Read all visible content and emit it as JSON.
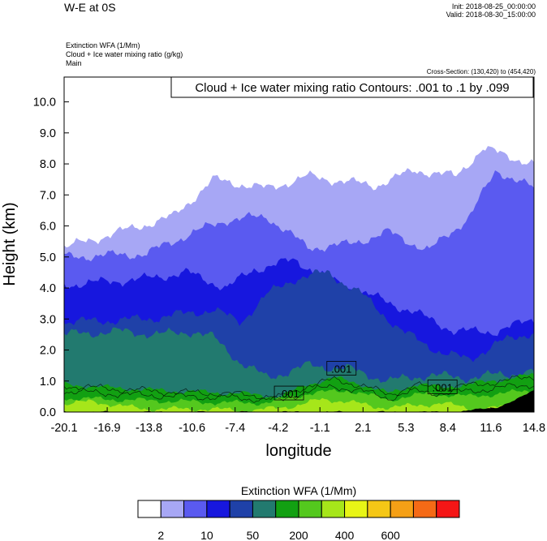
{
  "header": {
    "title": "W-E at 0S",
    "init": "Init: 2018-08-25_00:00:00",
    "valid": "Valid: 2018-08-30_15:00:00",
    "fields": [
      "Extinction WFA   (1/Mm)",
      "Cloud + Ice water mixing ratio   (g/kg)",
      "Main"
    ],
    "cross_section": "Cross-Section: (130,420) to (454,420)"
  },
  "chart_data": {
    "type": "heatmap",
    "xlabel": "longitude",
    "ylabel": "Height (km)",
    "xlim": [
      -20.1,
      14.8
    ],
    "ylim": [
      0.0,
      10.8
    ],
    "x_ticks": [
      "-20.1",
      "-16.9",
      "-13.8",
      "-10.6",
      "-7.4",
      "-4.2",
      "-1.1",
      "2.1",
      "5.3",
      "8.4",
      "11.6",
      "14.8"
    ],
    "x_tick_values": [
      -20.1,
      -16.9,
      -13.8,
      -10.6,
      -7.4,
      -4.2,
      -1.1,
      2.1,
      5.3,
      8.4,
      11.6,
      14.8
    ],
    "y_ticks": [
      "0.0",
      "1.0",
      "2.0",
      "3.0",
      "4.0",
      "5.0",
      "6.0",
      "7.0",
      "8.0",
      "9.0",
      "10.0"
    ],
    "y_tick_values": [
      0,
      1,
      2,
      3,
      4,
      5,
      6,
      7,
      8,
      9,
      10
    ],
    "contour_title": "Cloud + Ice water mixing ratio Contours: .001 to .1 by .099",
    "contour_labels": [
      {
        "text": ".001",
        "x": -3.4,
        "y": 0.6
      },
      {
        "text": ".001",
        "x": 0.5,
        "y": 1.4
      },
      {
        "text": ".001",
        "x": 8.0,
        "y": 0.8
      }
    ],
    "shading_layers": [
      {
        "level": 2,
        "color": "#a7a7f5",
        "x": [
          -20.1,
          -12,
          -9,
          -5,
          -2,
          3,
          6,
          9,
          11,
          14.8
        ],
        "top": [
          5.3,
          6.3,
          7.5,
          7.2,
          7.6,
          7.3,
          7.8,
          7.6,
          8.5,
          8.0
        ]
      },
      {
        "level": 10,
        "color": "#5a5af0",
        "x": [
          -20.1,
          -14,
          -11,
          -8,
          -5,
          -2,
          1,
          4,
          7,
          10,
          12,
          14.8
        ],
        "top": [
          5.0,
          5.1,
          5.7,
          6.2,
          6.3,
          5.3,
          5.4,
          5.8,
          5.2,
          6.3,
          7.8,
          7.2
        ]
      },
      {
        "level": 50,
        "color": "#1717de",
        "x": [
          -20.1,
          -14,
          -11,
          -8,
          -6,
          -3,
          0,
          3,
          6,
          9,
          12,
          14.8
        ],
        "top": [
          4.1,
          4.3,
          4.5,
          4.0,
          4.6,
          4.9,
          4.2,
          3.7,
          3.2,
          2.6,
          2.6,
          3.0
        ]
      },
      {
        "level": 100,
        "color": "#1f41a8",
        "x": [
          -20.1,
          -14,
          -9,
          -7,
          -5,
          -3,
          -0.5,
          2,
          5,
          8,
          10,
          12,
          14.8
        ],
        "top": [
          2.9,
          3.0,
          3.3,
          2.9,
          3.8,
          4.3,
          4.5,
          3.8,
          2.6,
          1.9,
          1.7,
          2.2,
          2.6
        ]
      },
      {
        "level": 150,
        "color": "#227a6f",
        "x": [
          -20.1,
          -16,
          -13,
          -10.5,
          -9,
          -7,
          -5,
          -2,
          1,
          4,
          7,
          9.5,
          14.8
        ],
        "top": [
          2.5,
          2.6,
          2.5,
          2.6,
          2.4,
          1.6,
          1.1,
          1.5,
          1.4,
          1.0,
          1.2,
          1.1,
          1.3
        ]
      },
      {
        "level": 200,
        "color": "#12a012",
        "x": [
          -20.1,
          -17,
          -13,
          -10,
          -7,
          -4,
          -2,
          0,
          2,
          4,
          6,
          8,
          10,
          14.8
        ],
        "top": [
          0.9,
          0.8,
          0.7,
          0.65,
          0.6,
          0.5,
          0.9,
          1.1,
          0.9,
          0.6,
          0.9,
          0.8,
          0.9,
          1.2
        ]
      },
      {
        "level": 300,
        "color": "#54c81e",
        "x": [
          -20.1,
          -16,
          -12,
          -8,
          -5,
          -2,
          1,
          4,
          7,
          10,
          14.8
        ],
        "top": [
          0.45,
          0.4,
          0.35,
          0.3,
          0.3,
          0.6,
          0.7,
          0.4,
          0.6,
          0.5,
          0.7
        ]
      },
      {
        "level": 400,
        "color": "#a6e61a",
        "x": [
          -20.1,
          -18,
          -16,
          -14,
          -10,
          -6,
          -3,
          -1,
          1,
          3,
          6,
          8,
          10,
          14.8
        ],
        "top": [
          0.25,
          0.35,
          0.2,
          0.1,
          0.1,
          0.05,
          0.2,
          0.4,
          0.35,
          0.15,
          0.2,
          0.3,
          0.1,
          0.2
        ]
      }
    ],
    "terrain": {
      "color": "#000000",
      "x": [
        9.0,
        12.0,
        13.5,
        14.8
      ],
      "top": [
        0.0,
        0.15,
        0.4,
        0.7
      ]
    }
  },
  "colorbar": {
    "title": "Extinction WFA  (1/Mm)",
    "colors": [
      "#ffffff",
      "#a7a7f5",
      "#5a5af0",
      "#1717de",
      "#1f41a8",
      "#227a6f",
      "#12a012",
      "#54c81e",
      "#a6e61a",
      "#e8f516",
      "#f5c716",
      "#f5a016",
      "#f56a16",
      "#f51616"
    ],
    "labels": [
      "2",
      "10",
      "50",
      "200",
      "400",
      "600"
    ],
    "label_boundaries": [
      1,
      3,
      5,
      7,
      9,
      11
    ]
  }
}
